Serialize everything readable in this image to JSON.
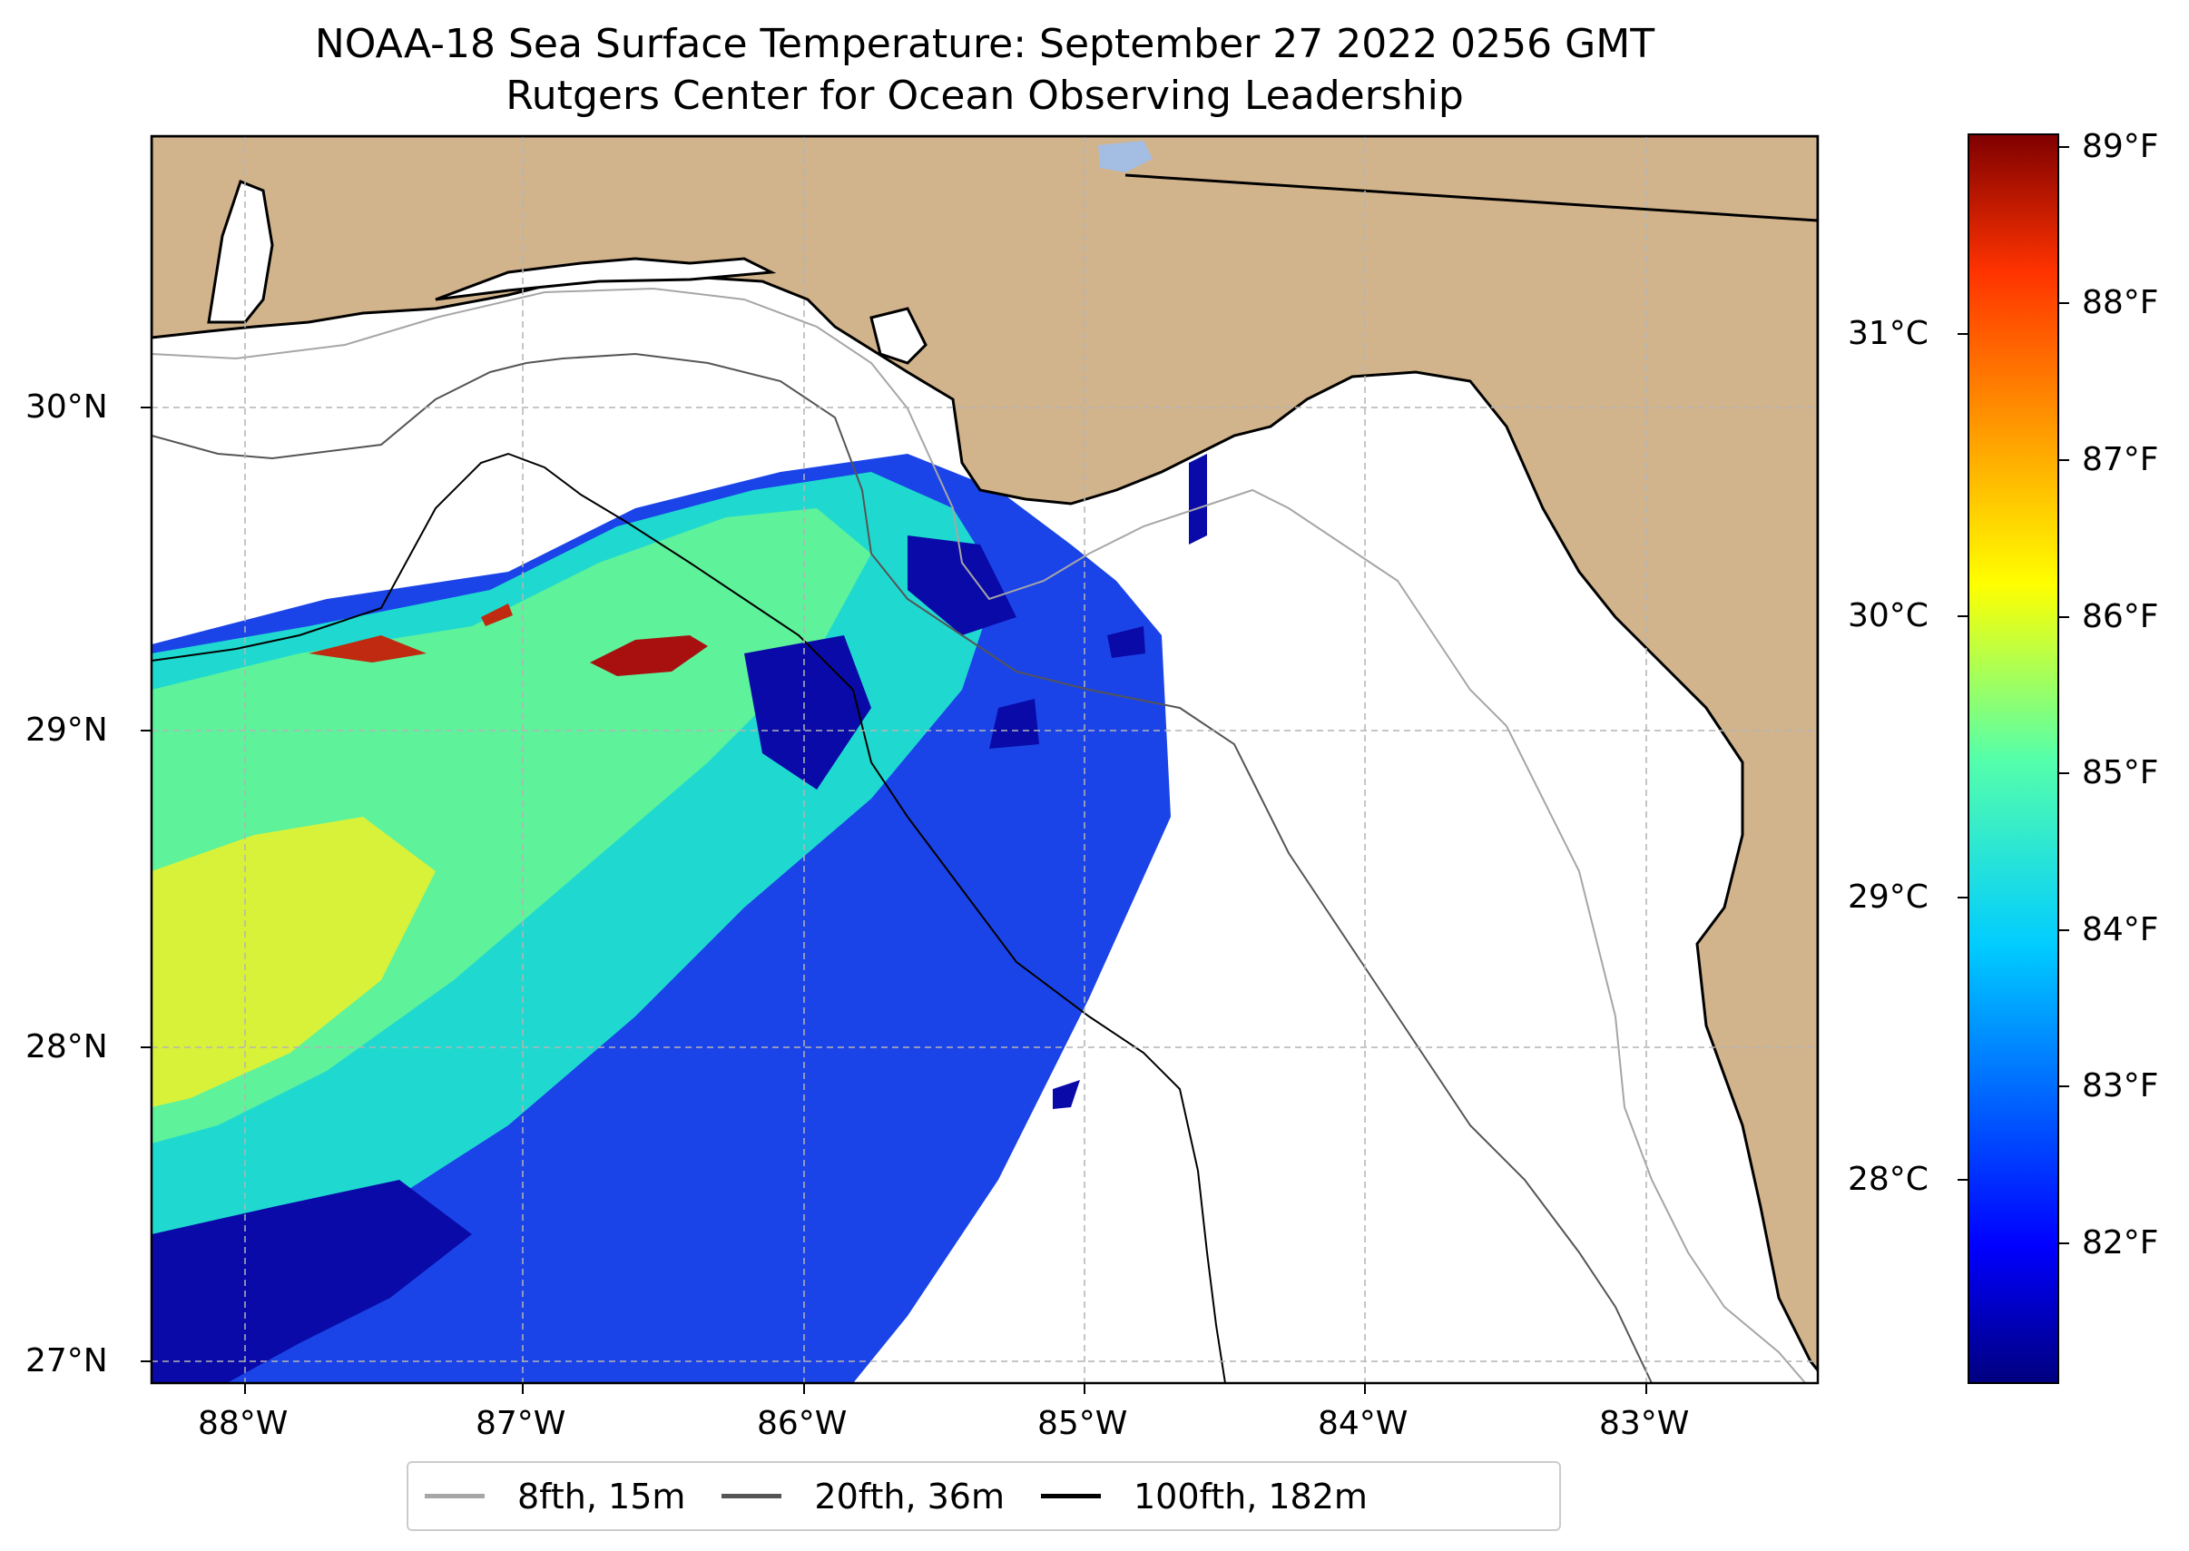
{
  "title": {
    "line1": "NOAA-18 Sea Surface Temperature: September 27 2022 0256 GMT",
    "line2": "Rutgers Center for Ocean Observing Leadership"
  },
  "map": {
    "lon_ticks": [
      "88°W",
      "87°W",
      "86°W",
      "85°W",
      "84°W",
      "83°W"
    ],
    "lat_ticks": [
      "30°N",
      "29°N",
      "28°N",
      "27°N"
    ],
    "colors": {
      "land": "#d2b48c",
      "water_body": "#a3bde3",
      "gridline": "#b4b4b4"
    }
  },
  "colorbar": {
    "celsius_ticks": [
      "31°C",
      "30°C",
      "29°C",
      "28°C"
    ],
    "fahrenheit_ticks": [
      "89°F",
      "88°F",
      "87°F",
      "86°F",
      "85°F",
      "84°F",
      "83°F",
      "82°F"
    ],
    "colormap": "jet",
    "range_f": [
      81.2,
      89.1
    ]
  },
  "legend": {
    "items": [
      {
        "label": "8fth, 15m",
        "color": "#a6a6a6"
      },
      {
        "label": "20fth, 36m",
        "color": "#555555"
      },
      {
        "label": "100fth, 182m",
        "color": "#000000"
      }
    ]
  }
}
